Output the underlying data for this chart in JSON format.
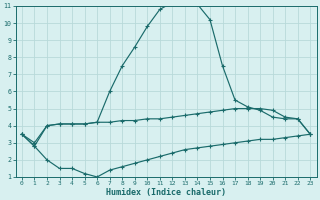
{
  "xlabel": "Humidex (Indice chaleur)",
  "bg_color": "#d8f0f0",
  "grid_color": "#b8dada",
  "line_color": "#1a6b6b",
  "xlim": [
    -0.5,
    23.5
  ],
  "ylim": [
    1,
    11
  ],
  "xticks": [
    0,
    1,
    2,
    3,
    4,
    5,
    6,
    7,
    8,
    9,
    10,
    11,
    12,
    13,
    14,
    15,
    16,
    17,
    18,
    19,
    20,
    21,
    22,
    23
  ],
  "yticks": [
    1,
    2,
    3,
    4,
    5,
    6,
    7,
    8,
    9,
    10,
    11
  ],
  "curve_top": {
    "x": [
      0,
      1,
      2,
      3,
      4,
      5,
      6,
      7,
      8,
      9,
      10,
      11,
      12,
      13,
      14,
      15,
      16,
      17,
      18,
      19,
      20,
      21,
      22,
      23
    ],
    "y": [
      3.5,
      2.8,
      4.0,
      4.1,
      4.1,
      4.1,
      4.2,
      6.0,
      7.5,
      8.6,
      9.8,
      10.8,
      11.2,
      11.2,
      11.1,
      10.2,
      7.5,
      5.5,
      5.1,
      4.9,
      4.5,
      4.4,
      4.4,
      3.5
    ]
  },
  "curve_mid": {
    "x": [
      0,
      1,
      2,
      3,
      4,
      5,
      6,
      7,
      8,
      9,
      10,
      11,
      12,
      13,
      14,
      15,
      16,
      17,
      18,
      19,
      20,
      21,
      22,
      23
    ],
    "y": [
      3.5,
      3.0,
      4.0,
      4.1,
      4.1,
      4.1,
      4.2,
      4.2,
      4.3,
      4.3,
      4.4,
      4.4,
      4.5,
      4.6,
      4.7,
      4.8,
      4.9,
      5.0,
      5.0,
      5.0,
      4.9,
      4.5,
      4.4,
      3.5
    ]
  },
  "curve_bot": {
    "x": [
      0,
      1,
      2,
      3,
      4,
      5,
      6,
      7,
      8,
      9,
      10,
      11,
      12,
      13,
      14,
      15,
      16,
      17,
      18,
      19,
      20,
      21,
      22,
      23
    ],
    "y": [
      3.5,
      2.8,
      2.0,
      1.5,
      1.5,
      1.2,
      1.0,
      1.4,
      1.6,
      1.8,
      2.0,
      2.2,
      2.4,
      2.6,
      2.7,
      2.8,
      2.9,
      3.0,
      3.1,
      3.2,
      3.2,
      3.3,
      3.4,
      3.5
    ]
  }
}
